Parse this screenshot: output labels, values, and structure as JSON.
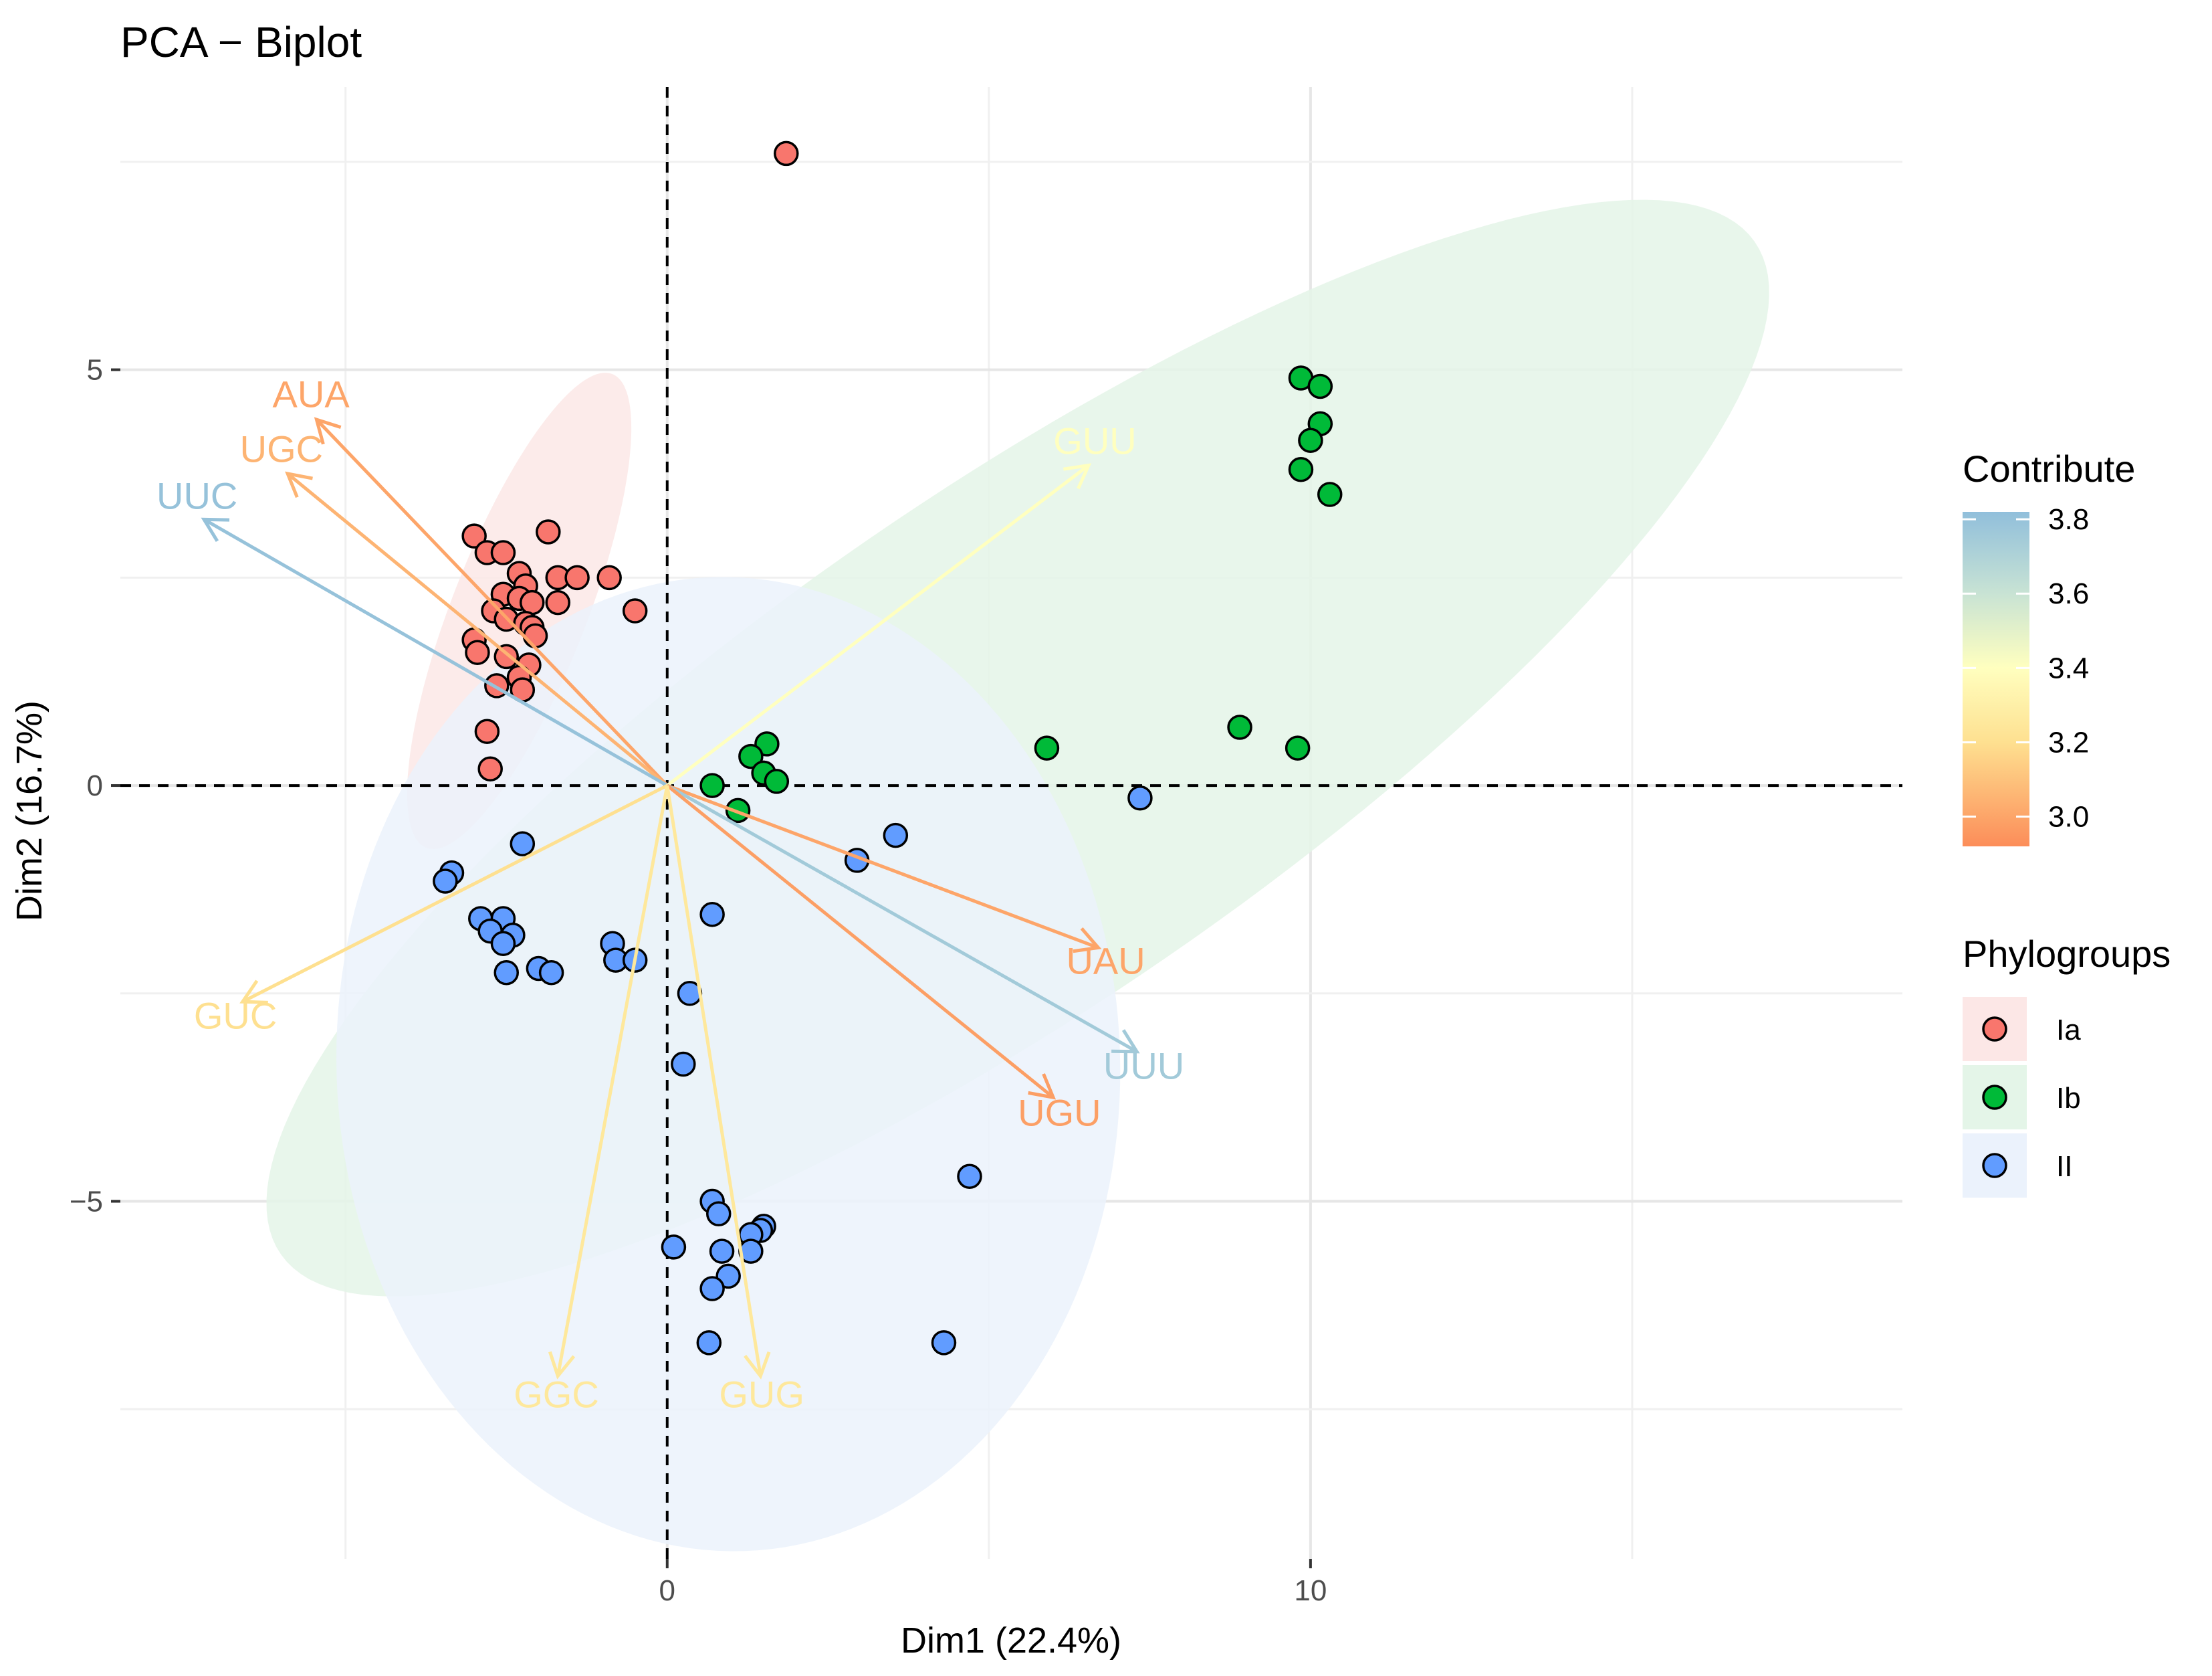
{
  "chart_data": {
    "type": "scatter",
    "title": "PCA − Biplot",
    "xlabel": "Dim1 (22.4%)",
    "ylabel": "Dim2 (16.7%)",
    "xlim": [
      -8.5,
      19.2
    ],
    "ylim": [
      -9.3,
      8.4
    ],
    "x_ticks": [
      {
        "value": 0,
        "label": "0"
      },
      {
        "value": 10,
        "label": "10"
      }
    ],
    "y_ticks": [
      {
        "value": 5,
        "label": "5"
      },
      {
        "value": 0,
        "label": "0"
      },
      {
        "value": -5,
        "label": "−5"
      }
    ],
    "grid": true,
    "reference_lines": {
      "x": 0,
      "y": 0,
      "style": "dashed"
    },
    "groups": [
      {
        "name": "Ia",
        "color": "#F8766D",
        "fill": "#FCE7E6",
        "points": [
          [
            1.85,
            7.6
          ],
          [
            -3.0,
            3.0
          ],
          [
            -2.8,
            2.8
          ],
          [
            -2.55,
            2.8
          ],
          [
            -1.85,
            3.05
          ],
          [
            -2.3,
            2.55
          ],
          [
            -2.2,
            2.4
          ],
          [
            -1.7,
            2.5
          ],
          [
            -1.4,
            2.5
          ],
          [
            -0.9,
            2.5
          ],
          [
            -2.55,
            2.3
          ],
          [
            -2.3,
            2.25
          ],
          [
            -2.1,
            2.2
          ],
          [
            -1.7,
            2.2
          ],
          [
            -2.7,
            2.1
          ],
          [
            -2.5,
            2.0
          ],
          [
            -2.2,
            1.95
          ],
          [
            -2.1,
            1.9
          ],
          [
            -0.5,
            2.1
          ],
          [
            -2.05,
            1.8
          ],
          [
            -3.0,
            1.75
          ],
          [
            -2.95,
            1.6
          ],
          [
            -2.5,
            1.55
          ],
          [
            -2.15,
            1.45
          ],
          [
            -2.3,
            1.3
          ],
          [
            -2.65,
            1.2
          ],
          [
            -2.25,
            1.15
          ],
          [
            -2.8,
            0.65
          ],
          [
            -2.75,
            0.2
          ]
        ]
      },
      {
        "name": "Ib",
        "color": "#00BA38",
        "fill": "#E4F5E8",
        "points": [
          [
            9.85,
            4.9
          ],
          [
            10.15,
            4.8
          ],
          [
            10.15,
            4.35
          ],
          [
            10.0,
            4.15
          ],
          [
            9.85,
            3.8
          ],
          [
            10.3,
            3.5
          ],
          [
            5.9,
            0.45
          ],
          [
            8.9,
            0.7
          ],
          [
            9.8,
            0.45
          ],
          [
            1.55,
            0.5
          ],
          [
            1.3,
            0.35
          ],
          [
            1.5,
            0.15
          ],
          [
            1.7,
            0.05
          ],
          [
            0.7,
            0.0
          ],
          [
            1.1,
            -0.3
          ]
        ]
      },
      {
        "name": "II",
        "color": "#619CFF",
        "fill": "#EBF2FC",
        "points": [
          [
            7.35,
            -0.15
          ],
          [
            3.55,
            -0.6
          ],
          [
            2.95,
            -0.9
          ],
          [
            -2.25,
            -0.7
          ],
          [
            -3.35,
            -1.05
          ],
          [
            -3.45,
            -1.15
          ],
          [
            0.7,
            -1.55
          ],
          [
            -2.9,
            -1.6
          ],
          [
            -2.55,
            -1.6
          ],
          [
            -2.75,
            -1.75
          ],
          [
            -2.4,
            -1.8
          ],
          [
            -2.55,
            -1.9
          ],
          [
            -0.85,
            -1.9
          ],
          [
            -0.8,
            -2.1
          ],
          [
            -0.5,
            -2.1
          ],
          [
            -2.0,
            -2.2
          ],
          [
            -2.5,
            -2.25
          ],
          [
            -1.8,
            -2.25
          ],
          [
            0.35,
            -2.5
          ],
          [
            0.25,
            -3.35
          ],
          [
            4.7,
            -4.7
          ],
          [
            0.7,
            -5.0
          ],
          [
            0.8,
            -5.15
          ],
          [
            1.5,
            -5.3
          ],
          [
            1.45,
            -5.35
          ],
          [
            1.3,
            -5.4
          ],
          [
            0.1,
            -5.55
          ],
          [
            0.85,
            -5.6
          ],
          [
            1.3,
            -5.6
          ],
          [
            0.95,
            -5.9
          ],
          [
            0.7,
            -6.05
          ],
          [
            4.3,
            -6.7
          ],
          [
            0.65,
            -6.7
          ]
        ]
      }
    ],
    "ellipses": [
      {
        "group": "Ia",
        "center": [
          -2.3,
          2.1
        ],
        "semi_major": 3.2,
        "semi_minor": 1.0,
        "angle_deg": 62
      },
      {
        "group": "Ib",
        "center": [
          5.45,
          0.45
        ],
        "semi_major": 13.0,
        "semi_minor": 3.3,
        "angle_deg": 27
      },
      {
        "group": "II",
        "center": [
          0.95,
          -3.35
        ],
        "semi_major": 6.1,
        "semi_minor": 5.85,
        "angle_deg": -10
      }
    ],
    "variables": [
      {
        "name": "AUA",
        "x": -5.45,
        "y": 4.4,
        "contrib": 3.0
      },
      {
        "name": "UGC",
        "x": -5.9,
        "y": 3.75,
        "contrib": 3.05
      },
      {
        "name": "UUC",
        "x": -7.2,
        "y": 3.2,
        "contrib": 3.8
      },
      {
        "name": "GUU",
        "x": 6.55,
        "y": 3.85,
        "contrib": 3.4
      },
      {
        "name": "UAU",
        "x": 6.7,
        "y": -1.95,
        "contrib": 3.0
      },
      {
        "name": "UUU",
        "x": 7.3,
        "y": -3.2,
        "contrib": 3.75
      },
      {
        "name": "UGU",
        "x": 6.0,
        "y": -3.75,
        "contrib": 2.98
      },
      {
        "name": "GUC",
        "x": -6.6,
        "y": -2.6,
        "contrib": 3.2
      },
      {
        "name": "GGC",
        "x": -1.7,
        "y": -7.1,
        "contrib": 3.25
      },
      {
        "name": "GUG",
        "x": 1.45,
        "y": -7.1,
        "contrib": 3.25
      }
    ],
    "contrib_scale": {
      "title": "Contribute",
      "ticks": [
        3.8,
        3.6,
        3.4,
        3.2,
        3.0
      ],
      "tick_labels": [
        "3.8",
        "3.6",
        "3.4",
        "3.2",
        "3.0"
      ],
      "range": [
        2.92,
        3.82
      ],
      "stops": [
        {
          "value": 2.92,
          "color": "#FC8D59"
        },
        {
          "value": 3.2,
          "color": "#FEE090"
        },
        {
          "value": 3.4,
          "color": "#FFFFBF"
        },
        {
          "value": 3.6,
          "color": "#C8E3D4"
        },
        {
          "value": 3.82,
          "color": "#91BFDB"
        }
      ]
    },
    "legend": {
      "title": "Phylogroups",
      "position": "right"
    }
  }
}
